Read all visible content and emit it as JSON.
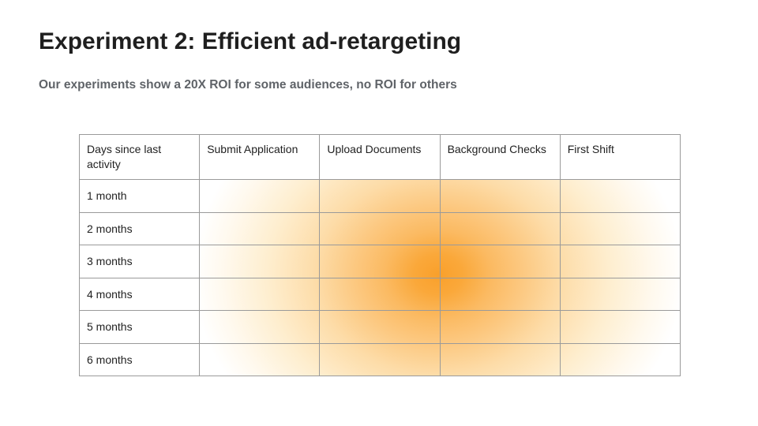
{
  "title": "Experiment 2: Efficient ad-retargeting",
  "subtitle": "Our experiments show a 20X ROI for some audiences, no ROI for others",
  "table": {
    "columns": [
      "Days since last activity",
      "Submit Application",
      "Upload Documents",
      "Background Checks",
      "First Shift"
    ],
    "row_labels": [
      "1 month",
      "2 months",
      "3 months",
      "4 months",
      "5 months",
      "6 months"
    ]
  },
  "chart_data": {
    "type": "heatmap",
    "title": "Experiment 2: Efficient ad-retargeting",
    "subtitle": "Our experiments show a 20X ROI for some audiences, no ROI for others",
    "x_categories": [
      "Submit Application",
      "Upload Documents",
      "Background Checks",
      "First Shift"
    ],
    "y_categories": [
      "1 month",
      "2 months",
      "3 months",
      "4 months",
      "5 months",
      "6 months"
    ],
    "values": [
      [
        0.25,
        0.5,
        0.45,
        0.2
      ],
      [
        0.3,
        0.65,
        0.6,
        0.25
      ],
      [
        0.35,
        0.9,
        0.8,
        0.3
      ],
      [
        0.35,
        0.9,
        0.8,
        0.3
      ],
      [
        0.3,
        0.65,
        0.6,
        0.25
      ],
      [
        0.25,
        0.5,
        0.45,
        0.2
      ]
    ],
    "value_scale": "relative ad-ROI intensity, 0 = white (no ROI) to 1 = max orange",
    "hotspot": {
      "x": "between Upload Documents and Background Checks",
      "y": "between 3 months and 4 months"
    },
    "colors": {
      "max": "#F9A02B",
      "min": "#FFFFFF"
    },
    "legend": "none",
    "grid": true
  },
  "colors": {
    "title_text": "#1F1F1F",
    "subtitle_text": "#5F6368",
    "table_border": "#9A9A9A",
    "heat_max": "#F9A02B",
    "heat_min": "#FFFFFF"
  }
}
